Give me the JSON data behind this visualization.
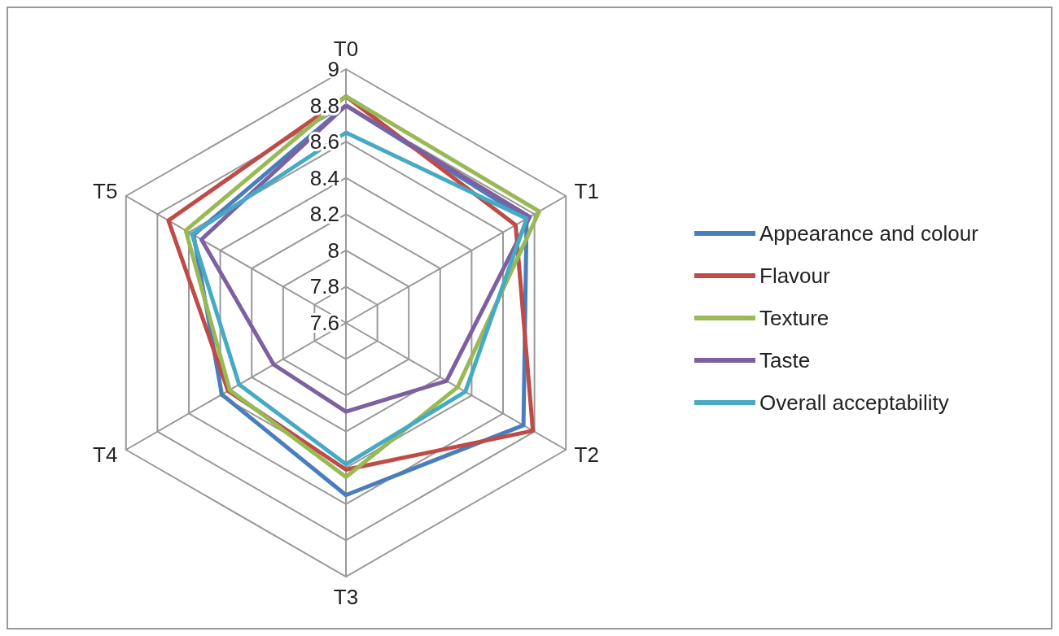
{
  "chart_data": {
    "type": "radar",
    "categories": [
      "T0",
      "T1",
      "T2",
      "T3",
      "T4",
      "T5"
    ],
    "ylim": [
      7.6,
      9
    ],
    "yticks": [
      7.6,
      7.8,
      8,
      8.2,
      8.4,
      8.6,
      8.8,
      9
    ],
    "legend": "right",
    "series": [
      {
        "name": "Appearance and colour",
        "color": "#4a7ebb",
        "values": [
          8.8,
          8.75,
          8.73,
          8.55,
          8.39,
          8.57
        ]
      },
      {
        "name": "Flavour",
        "color": "#be4b48",
        "values": [
          8.85,
          8.68,
          8.79,
          8.41,
          8.35,
          8.73
        ]
      },
      {
        "name": "Texture",
        "color": "#98b954",
        "values": [
          8.85,
          8.83,
          8.31,
          8.45,
          8.34,
          8.62
        ]
      },
      {
        "name": "Taste",
        "color": "#7d60a0",
        "values": [
          8.8,
          8.77,
          8.24,
          8.09,
          8.06,
          8.52
        ]
      },
      {
        "name": "Overall acceptability",
        "color": "#46aac5",
        "values": [
          8.65,
          8.75,
          8.36,
          8.38,
          8.28,
          8.58
        ]
      }
    ]
  }
}
